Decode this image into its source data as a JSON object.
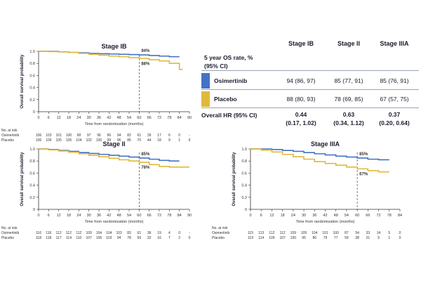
{
  "chart_data": [
    {
      "type": "line",
      "title": "Stage IB",
      "xlabel": "Time from randomization (months)",
      "ylabel": "Overall survival probability",
      "xlim": [
        0,
        90
      ],
      "ylim": [
        0,
        1.0
      ],
      "xticks": [
        "0",
        "6",
        "12",
        "18",
        "24",
        "30",
        "36",
        "42",
        "48",
        "54",
        "60",
        "66",
        "72",
        "78",
        "84",
        "90"
      ],
      "yticks": [
        "0",
        "0.2",
        "0.4",
        "0.6",
        "0.8",
        "1.0"
      ],
      "marker_x": 60,
      "annotations": [
        {
          "text": "94%",
          "series": "Osimertinib"
        },
        {
          "text": "88%",
          "series": "Placebo"
        }
      ],
      "series": [
        {
          "name": "Osimertinib",
          "color": "#4472c4",
          "x": [
            0,
            6,
            12,
            18,
            24,
            30,
            36,
            42,
            48,
            54,
            60,
            66,
            72,
            78,
            84
          ],
          "y": [
            1.0,
            1.0,
            0.99,
            0.98,
            0.975,
            0.965,
            0.96,
            0.955,
            0.95,
            0.945,
            0.94,
            0.93,
            0.92,
            0.91,
            0.91
          ]
        },
        {
          "name": "Placebo",
          "color": "#e0b93a",
          "x": [
            0,
            6,
            12,
            18,
            24,
            30,
            36,
            42,
            48,
            54,
            60,
            66,
            72,
            78,
            84,
            86
          ],
          "y": [
            1.0,
            0.995,
            0.99,
            0.98,
            0.965,
            0.95,
            0.935,
            0.92,
            0.91,
            0.895,
            0.88,
            0.86,
            0.84,
            0.8,
            0.7,
            0.7
          ]
        }
      ],
      "risk_table": {
        "label": "No. at risk",
        "rows": [
          {
            "name": "Osimertinib",
            "values": [
              "106",
              "103",
              "101",
              "100",
              "98",
              "97",
              "96",
              "96",
              "94",
              "82",
              "61",
              "39",
              "17",
              "6",
              "0",
              "-"
            ]
          },
          {
            "name": "Placebo",
            "values": [
              "106",
              "106",
              "105",
              "105",
              "104",
              "102",
              "100",
              "99",
              "96",
              "85",
              "70",
              "44",
              "18",
              "9",
              "1",
              "0"
            ]
          }
        ]
      }
    },
    {
      "type": "line",
      "title": "Stage II",
      "xlabel": "Time from randomization (months)",
      "ylabel": "Overall survival probability",
      "xlim": [
        0,
        90
      ],
      "ylim": [
        0,
        1.0
      ],
      "xticks": [
        "0",
        "6",
        "12",
        "18",
        "24",
        "30",
        "36",
        "42",
        "48",
        "54",
        "60",
        "66",
        "72",
        "78",
        "84",
        "90"
      ],
      "yticks": [
        "0",
        "0.2",
        "0.4",
        "0.6",
        "0.8",
        "1.0"
      ],
      "marker_x": 60,
      "annotations": [
        {
          "text": "85%",
          "series": "Osimertinib"
        },
        {
          "text": "78%",
          "series": "Placebo"
        }
      ],
      "series": [
        {
          "name": "Osimertinib",
          "color": "#4472c4",
          "x": [
            0,
            6,
            12,
            18,
            24,
            30,
            36,
            42,
            48,
            54,
            60,
            66,
            72,
            78,
            84
          ],
          "y": [
            1.0,
            0.99,
            0.975,
            0.96,
            0.94,
            0.925,
            0.91,
            0.895,
            0.88,
            0.865,
            0.85,
            0.83,
            0.81,
            0.8,
            0.8
          ]
        },
        {
          "name": "Placebo",
          "color": "#e0b93a",
          "x": [
            0,
            6,
            12,
            18,
            24,
            30,
            36,
            42,
            48,
            54,
            60,
            66,
            72,
            78,
            84,
            90
          ],
          "y": [
            1.0,
            0.985,
            0.965,
            0.945,
            0.92,
            0.895,
            0.87,
            0.845,
            0.82,
            0.8,
            0.78,
            0.74,
            0.71,
            0.7,
            0.7,
            0.7
          ]
        }
      ],
      "risk_table": {
        "label": "No. at risk",
        "rows": [
          {
            "name": "Osimertinib",
            "values": [
              "116",
              "116",
              "112",
              "112",
              "112",
              "109",
              "104",
              "104",
              "103",
              "83",
              "61",
              "36",
              "19",
              "4",
              "0",
              "-"
            ]
          },
          {
            "name": "Placebo",
            "values": [
              "118",
              "118",
              "117",
              "114",
              "110",
              "107",
              "106",
              "103",
              "94",
              "78",
              "56",
              "32",
              "16",
              "7",
              "2",
              "0"
            ]
          }
        ]
      }
    },
    {
      "type": "line",
      "title": "Stage IIIA",
      "xlabel": "Time from randomization (months)",
      "ylabel": "Overall survival probability",
      "xlim": [
        0,
        84
      ],
      "ylim": [
        0,
        1.0
      ],
      "xticks": [
        "0",
        "6",
        "12",
        "18",
        "24",
        "30",
        "36",
        "42",
        "48",
        "54",
        "60",
        "66",
        "72",
        "78",
        "84"
      ],
      "yticks": [
        "0",
        "0.2",
        "0.4",
        "0.6",
        "0.8",
        "1.0"
      ],
      "marker_x": 60,
      "annotations": [
        {
          "text": "85%",
          "series": "Osimertinib"
        },
        {
          "text": "67%",
          "series": "Placebo"
        }
      ],
      "series": [
        {
          "name": "Osimertinib",
          "color": "#4472c4",
          "x": [
            0,
            6,
            12,
            18,
            24,
            30,
            36,
            42,
            48,
            54,
            60,
            66,
            72,
            78
          ],
          "y": [
            1.0,
            1.0,
            0.99,
            0.975,
            0.96,
            0.94,
            0.92,
            0.9,
            0.88,
            0.865,
            0.85,
            0.83,
            0.82,
            0.82
          ]
        },
        {
          "name": "Placebo",
          "color": "#e0b93a",
          "x": [
            0,
            6,
            12,
            18,
            24,
            30,
            36,
            42,
            48,
            54,
            60,
            66,
            72,
            78
          ],
          "y": [
            1.0,
            0.98,
            0.95,
            0.91,
            0.87,
            0.83,
            0.79,
            0.76,
            0.73,
            0.7,
            0.67,
            0.64,
            0.62,
            0.62
          ]
        }
      ],
      "risk_table": {
        "label": "No. at risk",
        "rows": [
          {
            "name": "Osimertinib",
            "values": [
              "115",
              "113",
              "112",
              "112",
              "109",
              "105",
              "104",
              "101",
              "100",
              "87",
              "54",
              "33",
              "14",
              "5",
              "0"
            ]
          },
          {
            "name": "Placebo",
            "values": [
              "119",
              "114",
              "109",
              "107",
              "100",
              "95",
              "86",
              "79",
              "77",
              "59",
              "38",
              "21",
              "9",
              "1",
              "0"
            ]
          }
        ]
      }
    }
  ],
  "summary_table": {
    "header_label": "5 year OS rate, % (95% CI)",
    "columns": [
      "Stage IB",
      "Stage II",
      "Stage IIIA"
    ],
    "rows": [
      {
        "name": "Osimertinib",
        "color": "#4472c4",
        "values": [
          "94 (86, 97)",
          "85 (77, 91)",
          "85 (76, 91)"
        ]
      },
      {
        "name": "Placebo",
        "color": "#e0b93a",
        "values": [
          "88 (80, 93)",
          "78 (69, 85)",
          "67 (57, 75)"
        ]
      }
    ],
    "hr_label": "Overall HR (95% CI)",
    "hr_values": [
      {
        "hr": "0.44",
        "ci": "(0.17, 1.02)"
      },
      {
        "hr": "0.63",
        "ci": "(0.34, 1.12)"
      },
      {
        "hr": "0.37",
        "ci": "(0.20, 0.64)"
      }
    ]
  }
}
